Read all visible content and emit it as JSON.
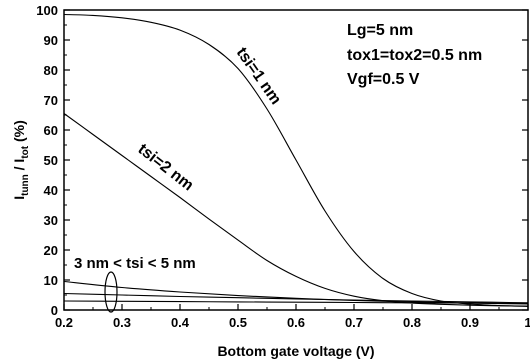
{
  "chart_data": {
    "type": "line",
    "xlabel": "Bottom gate voltage (V)",
    "ylabel": "I_tunn / I_tot (%)",
    "ylabel_parts": {
      "i1": "I",
      "s1": "tunn",
      "slash": " / I",
      "s2": "tot",
      "unit": "  (%)"
    },
    "xlim": [
      0.2,
      1.0
    ],
    "ylim": [
      0,
      100
    ],
    "xticks": [
      0.2,
      0.3,
      0.4,
      0.5,
      0.6,
      0.7,
      0.8,
      0.9,
      1.0
    ],
    "yticks": [
      0,
      10,
      20,
      30,
      40,
      50,
      60,
      70,
      80,
      90,
      100
    ],
    "xtick_labels": [
      "0.2",
      "0.3",
      "0.4",
      "0.5",
      "0.6",
      "0.7",
      "0.8",
      "0.9",
      "1"
    ],
    "ytick_labels": [
      "0",
      "10",
      "20",
      "30",
      "40",
      "50",
      "60",
      "70",
      "80",
      "90",
      "100"
    ],
    "grid": false,
    "legend": "none",
    "annotations": [
      "Lg=5 nm",
      "tox1=tox2=0.5 nm",
      "Vgf=0.5 V"
    ],
    "range_label": "3 nm < tsi < 5 nm",
    "series": [
      {
        "name": "tsi=1 nm",
        "x": [
          0.2,
          0.25,
          0.3,
          0.35,
          0.4,
          0.45,
          0.5,
          0.55,
          0.6,
          0.65,
          0.7,
          0.75,
          0.8,
          0.85,
          0.9,
          0.95,
          1.0
        ],
        "values": [
          98.5,
          98.2,
          97.4,
          95.9,
          93.3,
          88.5,
          80.5,
          67,
          50,
          33,
          19.5,
          10.5,
          5.5,
          3,
          2,
          1.5,
          1.2
        ]
      },
      {
        "name": "tsi=2 nm",
        "x": [
          0.2,
          0.25,
          0.3,
          0.35,
          0.4,
          0.45,
          0.5,
          0.55,
          0.6,
          0.65,
          0.7,
          0.75,
          0.8,
          0.85,
          0.9,
          0.95,
          1.0
        ],
        "values": [
          65.5,
          58.5,
          51.5,
          44.5,
          37.5,
          30.3,
          23.3,
          16.5,
          11.2,
          7.2,
          4.6,
          3.1,
          2.3,
          1.9,
          1.6,
          1.4,
          1.3
        ]
      },
      {
        "x": [
          0.2,
          0.3,
          0.4,
          0.5,
          0.6,
          0.7,
          0.8,
          0.9,
          1.0
        ],
        "values": [
          9.5,
          7.5,
          6.0,
          4.8,
          3.9,
          3.2,
          2.7,
          2.3,
          2.0
        ]
      },
      {
        "x": [
          0.2,
          0.3,
          0.4,
          0.5,
          0.6,
          0.7,
          0.8,
          0.9,
          1.0
        ],
        "values": [
          5.5,
          5.0,
          4.5,
          4.1,
          3.7,
          3.3,
          3.0,
          2.7,
          2.4
        ]
      },
      {
        "x": [
          0.2,
          0.3,
          0.4,
          0.5,
          0.6,
          0.7,
          0.8,
          0.9,
          1.0
        ],
        "values": [
          3.0,
          2.9,
          2.8,
          2.7,
          2.6,
          2.5,
          2.4,
          2.3,
          2.2
        ]
      }
    ]
  }
}
